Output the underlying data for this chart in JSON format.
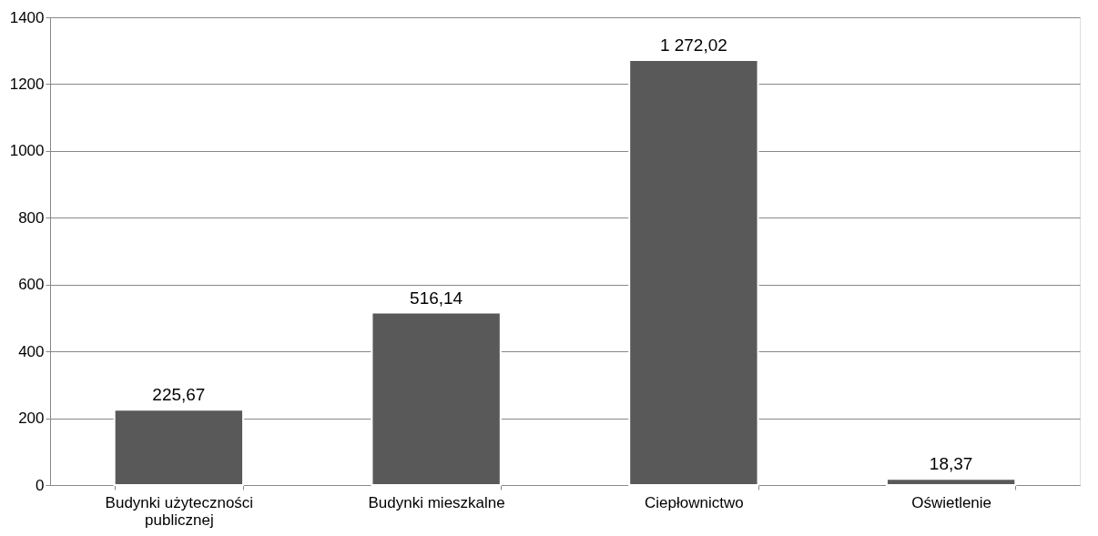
{
  "chart_data": {
    "type": "bar",
    "categories": [
      "Budynki użyteczności publicznej",
      "Budynki mieszkalne",
      "Ciepłownictwo",
      "Oświetlenie"
    ],
    "values": [
      225.67,
      516.14,
      1272.02,
      18.37
    ],
    "value_labels": [
      "225,67",
      "516,14",
      "1 272,02",
      "18,37"
    ],
    "color": "#595959",
    "ylim": [
      0,
      1400
    ],
    "yticks": [
      0,
      200,
      400,
      600,
      800,
      1000,
      1200,
      1400
    ],
    "grid": "y"
  }
}
